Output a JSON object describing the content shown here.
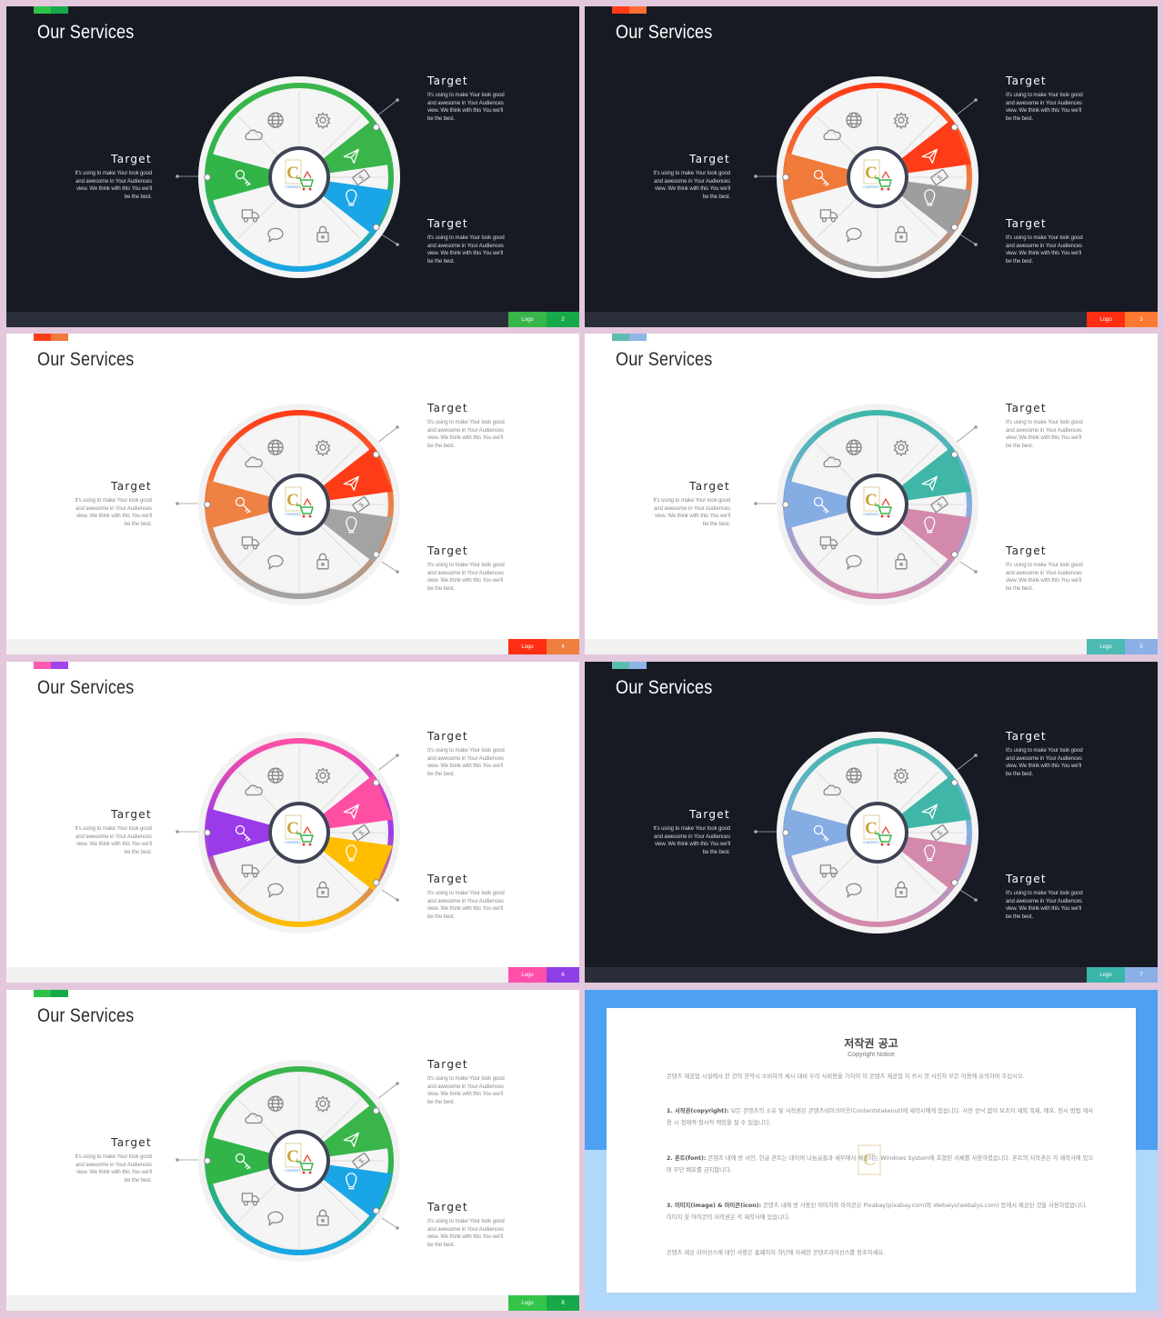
{
  "slides": [
    {
      "theme": "dark",
      "title": "Our Services",
      "colors": {
        "top": "#2ec14a",
        "bottom": "#14a94b",
        "c1": "#39b54a",
        "c2": "#1aa5e6",
        "c3": "#31b549",
        "logo": "#38b54a",
        "page": "#17a84a"
      },
      "page": "2"
    },
    {
      "theme": "dark",
      "title": "Our Services",
      "colors": {
        "top": "#ff3b1a",
        "bottom": "#ff6e32",
        "c1": "#ff3c18",
        "c2": "#9e9e9e",
        "c3": "#f07a3a",
        "logo": "#ff2d12",
        "page": "#ff7a30"
      },
      "page": "3"
    },
    {
      "theme": "light",
      "title": "Our Services",
      "colors": {
        "top": "#ff3b1a",
        "bottom": "#ef7a3a",
        "c1": "#ff3c18",
        "c2": "#a3a3a3",
        "c3": "#ee8143",
        "logo": "#ff2d12",
        "page": "#ef7f3e"
      },
      "page": "4"
    },
    {
      "theme": "light",
      "title": "Our Services",
      "colors": {
        "top": "#5dbcb2",
        "bottom": "#8db5e6",
        "c1": "#3fb6a8",
        "c2": "#d289ab",
        "c3": "#85ade3",
        "logo": "#4bbab2",
        "page": "#8ab0e6"
      },
      "page": "5"
    },
    {
      "theme": "light",
      "title": "Our Services",
      "colors": {
        "top": "#ff5aaf",
        "bottom": "#a244ec",
        "c1": "#ff4fa3",
        "c2": "#ffbd00",
        "c3": "#9a3ae9",
        "logo": "#ff4faa",
        "page": "#8e3ee6"
      },
      "page": "6"
    },
    {
      "theme": "dark",
      "title": "Our Services",
      "colors": {
        "top": "#5dbcb2",
        "bottom": "#8db5e6",
        "c1": "#3fb6a8",
        "c2": "#d289ab",
        "c3": "#85ade3",
        "logo": "#3ab5a9",
        "page": "#8ab0e6"
      },
      "page": "7"
    },
    {
      "theme": "light",
      "title": "Our Services",
      "colors": {
        "top": "#2ec14a",
        "bottom": "#14a94b",
        "c1": "#39b54a",
        "c2": "#1aa5e6",
        "c3": "#31b549",
        "logo": "#33c44a",
        "page": "#17a84a"
      },
      "page": "8"
    }
  ],
  "targets": {
    "heading": "Target",
    "line1": "It's using to make Your look good",
    "line2": "and awesome in Your Audiences",
    "line3": "view. We think with this You we'll",
    "line4": "be the best."
  },
  "logo_label": "Logo",
  "icons": [
    "globe-icon",
    "gear-icon",
    "paper-plane-icon",
    "money-icon",
    "lightbulb-icon",
    "lock-icon",
    "chat-icon",
    "truck-icon",
    "key-icon",
    "cloud-icon",
    "cart-logo-icon"
  ],
  "copyright": {
    "title": "저작권 공고",
    "subtitle": "Copyright Notice",
    "p0": "콘텐츠 제공업 시설에서 한 건의 한악시 소비자의 세시 대비 우리 사비용을 가치이 이 콘텐츠 제공업 지 쓰시 첫 사진자 모든 이용에 유의하여 주십시오.",
    "p1_head": "1. 서작권(copyright):",
    "p1": "보든 콘텐츠의 소유 및 서작권은 콘텐츠테이크아웃(Contentstakeout)에 세작시에게 있습니다. 사전 승낙 없이 보조자 제외 복제, 배포, 전시 방법 재사용 시 정제적·형사적 책임을 질 수 있습니다.",
    "p2_head": "2. 폰트(font):",
    "p2": "콘텐츠 내에 방 서인, 한글 폰트는 네이버 나눔글꼴과 세부에서 제공하는 Windows System에 포함된 서체를 사용하였습니다. 폰트의 저작권은 각 제작사에 있으며 무단 배포를 금지합니다.",
    "p3_head": "3. 이미지(image) & 아이콘(icon):",
    "p3": "콘텐츠 내에 방 사용된 이미지와 아이콘은 Pixabay(pixabay.com)와 Webalys(webalys.com) 등에서 제공된 것을 사용하였습니다. 이미지 및 아이콘의 저작권은 각 제작사에 있습니다.",
    "p4": "콘텐츠 제공 라이선스에 대한 사항은 홈페이지 하단에 자세한 콘텐츠라이선스를 참조하세요."
  }
}
